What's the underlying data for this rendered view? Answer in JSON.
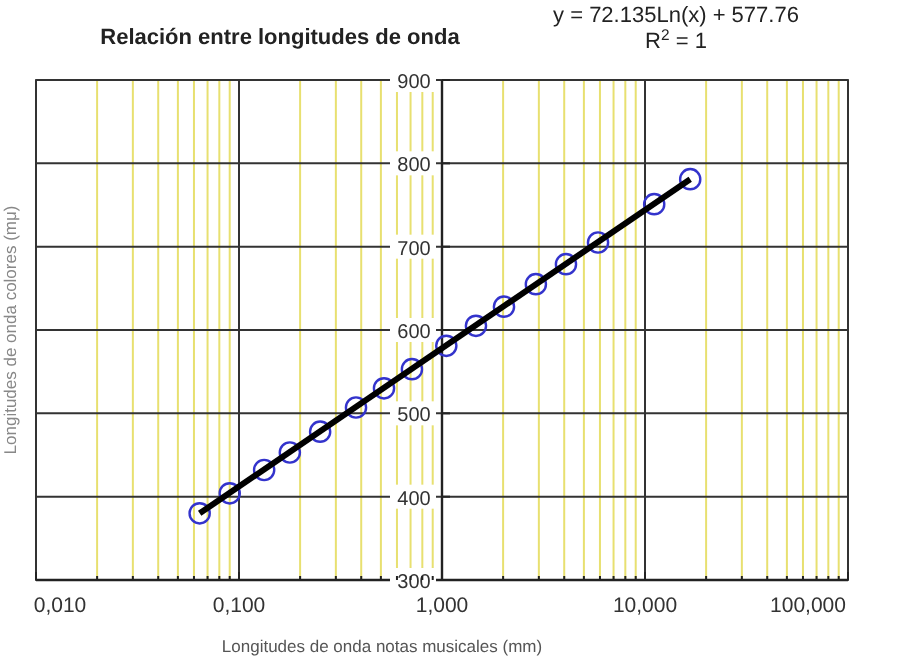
{
  "chart_data": {
    "type": "scatter",
    "title": "Relación entre longitudes de onda",
    "xlabel": "Longitudes de onda notas musicales  (mm)",
    "ylabel": "Longitudes de onda colores  (mμ)",
    "annotations": [
      "y = 72.135Ln(x) + 577.76",
      "R$^{2}$ = 1"
    ],
    "log": "x",
    "grid": true,
    "xlim": [
      0.01,
      100
    ],
    "xticks": [
      {
        "value": 0.01,
        "label": "0,010"
      },
      {
        "value": 0.1,
        "label": "0,100"
      },
      {
        "value": 1,
        "label": "1,000"
      },
      {
        "value": 10,
        "label": "10,000"
      },
      {
        "value": 100,
        "label": "100,000"
      },
      {
        "value": 0.02,
        "label": null
      },
      {
        "value": 0.03,
        "label": null
      },
      {
        "value": 0.04,
        "label": null
      },
      {
        "value": 0.05,
        "label": null
      },
      {
        "value": 0.06,
        "label": null
      },
      {
        "value": 0.07,
        "label": null
      },
      {
        "value": 0.08,
        "label": null
      },
      {
        "value": 0.09,
        "label": null
      },
      {
        "value": 0.2,
        "label": null
      },
      {
        "value": 0.3,
        "label": null
      },
      {
        "value": 0.4,
        "label": null
      },
      {
        "value": 0.5,
        "label": null
      },
      {
        "value": 0.6,
        "label": null
      },
      {
        "value": 0.7,
        "label": null
      },
      {
        "value": 0.8,
        "label": null
      },
      {
        "value": 0.9,
        "label": null
      },
      {
        "value": 2,
        "label": null
      },
      {
        "value": 3,
        "label": null
      },
      {
        "value": 4,
        "label": null
      },
      {
        "value": 5,
        "label": null
      },
      {
        "value": 6,
        "label": null
      },
      {
        "value": 7,
        "label": null
      },
      {
        "value": 8,
        "label": null
      },
      {
        "value": 9,
        "label": null
      },
      {
        "value": 20,
        "label": null
      },
      {
        "value": 30,
        "label": null
      },
      {
        "value": 40,
        "label": null
      },
      {
        "value": 50,
        "label": null
      },
      {
        "value": 60,
        "label": null
      },
      {
        "value": 70,
        "label": null
      },
      {
        "value": 80,
        "label": null
      },
      {
        "value": 90,
        "label": null
      }
    ],
    "ylim": [
      300,
      900
    ],
    "yticks": [
      300,
      400,
      500,
      600,
      700,
      800,
      900
    ],
    "series": [
      {
        "color": "#3333cc",
        "marker": "circle",
        "x": [
          0.064,
          0.09,
          0.133,
          0.178,
          0.251,
          0.377,
          0.518,
          0.711,
          1.05,
          1.47,
          2.02,
          2.9,
          4.08,
          5.87,
          11.1,
          16.7
        ],
        "values": [
          380,
          404,
          432,
          453,
          478,
          507,
          530,
          553,
          581,
          605,
          628,
          655,
          679,
          705,
          751,
          781
        ]
      },
      {
        "type": "line",
        "color": "#000000",
        "marker": "none",
        "x": [
          0.064,
          16.7
        ],
        "values": [
          380,
          781
        ]
      }
    ]
  }
}
